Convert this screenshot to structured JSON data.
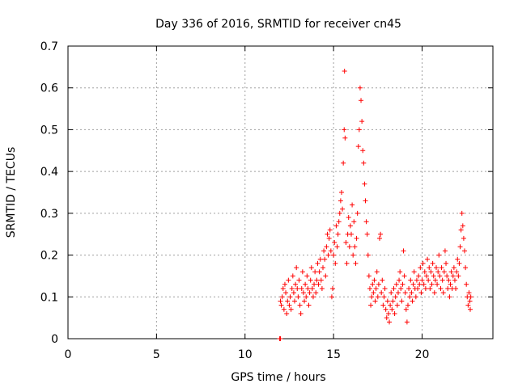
{
  "chart_data": {
    "type": "scatter",
    "title": "Day 336 of 2016, SRMTID for receiver cn45",
    "xlabel": "GPS time / hours",
    "ylabel": "SRMTID / TECUs",
    "xlim": [
      0,
      24
    ],
    "ylim": [
      0,
      0.7
    ],
    "xticks": [
      0,
      5,
      10,
      15,
      20
    ],
    "xtick_labels": [
      "0",
      "5",
      "10",
      "15",
      "20"
    ],
    "yticks": [
      0,
      0.1,
      0.2,
      0.3,
      0.4,
      0.5,
      0.6,
      0.7
    ],
    "ytick_labels": [
      "0",
      "0.1",
      "0.2",
      "0.3",
      "0.4",
      "0.5",
      "0.6",
      "0.7"
    ],
    "grid": true,
    "marker": "+",
    "color": "#ff0000",
    "series": [
      {
        "name": "SRMTID",
        "points": [
          [
            11.95,
            0.0
          ],
          [
            12.0,
            0.0
          ],
          [
            12.0,
            0.09
          ],
          [
            12.05,
            0.08
          ],
          [
            12.1,
            0.1
          ],
          [
            12.15,
            0.12
          ],
          [
            12.2,
            0.07
          ],
          [
            12.25,
            0.13
          ],
          [
            12.3,
            0.11
          ],
          [
            12.35,
            0.06
          ],
          [
            12.4,
            0.09
          ],
          [
            12.45,
            0.14
          ],
          [
            12.5,
            0.08
          ],
          [
            12.55,
            0.1
          ],
          [
            12.6,
            0.07
          ],
          [
            12.65,
            0.12
          ],
          [
            12.7,
            0.15
          ],
          [
            12.75,
            0.11
          ],
          [
            12.8,
            0.09
          ],
          [
            12.85,
            0.13
          ],
          [
            12.9,
            0.17
          ],
          [
            12.95,
            0.12
          ],
          [
            13.0,
            0.1
          ],
          [
            13.05,
            0.14
          ],
          [
            13.1,
            0.08
          ],
          [
            13.15,
            0.06
          ],
          [
            13.2,
            0.12
          ],
          [
            13.25,
            0.16
          ],
          [
            13.3,
            0.11
          ],
          [
            13.35,
            0.09
          ],
          [
            13.4,
            0.13
          ],
          [
            13.45,
            0.1
          ],
          [
            13.5,
            0.15
          ],
          [
            13.55,
            0.12
          ],
          [
            13.6,
            0.08
          ],
          [
            13.65,
            0.11
          ],
          [
            13.7,
            0.14
          ],
          [
            13.75,
            0.17
          ],
          [
            13.8,
            0.12
          ],
          [
            13.85,
            0.1
          ],
          [
            13.9,
            0.13
          ],
          [
            13.95,
            0.16
          ],
          [
            14.0,
            0.11
          ],
          [
            14.05,
            0.14
          ],
          [
            14.1,
            0.18
          ],
          [
            14.15,
            0.13
          ],
          [
            14.2,
            0.16
          ],
          [
            14.25,
            0.19
          ],
          [
            14.3,
            0.14
          ],
          [
            14.35,
            0.12
          ],
          [
            14.4,
            0.17
          ],
          [
            14.45,
            0.21
          ],
          [
            14.5,
            0.19
          ],
          [
            14.55,
            0.15
          ],
          [
            14.6,
            0.22
          ],
          [
            14.65,
            0.25
          ],
          [
            14.7,
            0.2
          ],
          [
            14.75,
            0.24
          ],
          [
            14.8,
            0.26
          ],
          [
            14.85,
            0.21
          ],
          [
            14.9,
            0.1
          ],
          [
            14.95,
            0.12
          ],
          [
            15.0,
            0.2
          ],
          [
            15.05,
            0.23
          ],
          [
            15.1,
            0.18
          ],
          [
            15.15,
            0.27
          ],
          [
            15.2,
            0.22
          ],
          [
            15.25,
            0.25
          ],
          [
            15.3,
            0.28
          ],
          [
            15.35,
            0.3
          ],
          [
            15.4,
            0.33
          ],
          [
            15.45,
            0.35
          ],
          [
            15.5,
            0.31
          ],
          [
            15.55,
            0.42
          ],
          [
            15.6,
            0.5
          ],
          [
            15.62,
            0.64
          ],
          [
            15.65,
            0.48
          ],
          [
            15.7,
            0.23
          ],
          [
            15.75,
            0.18
          ],
          [
            15.8,
            0.25
          ],
          [
            15.85,
            0.29
          ],
          [
            15.9,
            0.22
          ],
          [
            15.95,
            0.27
          ],
          [
            16.0,
            0.25
          ],
          [
            16.05,
            0.32
          ],
          [
            16.1,
            0.2
          ],
          [
            16.15,
            0.28
          ],
          [
            16.2,
            0.22
          ],
          [
            16.25,
            0.18
          ],
          [
            16.3,
            0.24
          ],
          [
            16.35,
            0.3
          ],
          [
            16.4,
            0.46
          ],
          [
            16.45,
            0.5
          ],
          [
            16.5,
            0.6
          ],
          [
            16.55,
            0.57
          ],
          [
            16.6,
            0.52
          ],
          [
            16.65,
            0.45
          ],
          [
            16.7,
            0.42
          ],
          [
            16.75,
            0.37
          ],
          [
            16.8,
            0.33
          ],
          [
            16.85,
            0.28
          ],
          [
            16.9,
            0.25
          ],
          [
            16.95,
            0.2
          ],
          [
            17.0,
            0.15
          ],
          [
            17.05,
            0.12
          ],
          [
            17.1,
            0.08
          ],
          [
            17.15,
            0.1
          ],
          [
            17.2,
            0.13
          ],
          [
            17.25,
            0.11
          ],
          [
            17.3,
            0.14
          ],
          [
            17.35,
            0.09
          ],
          [
            17.4,
            0.12
          ],
          [
            17.45,
            0.16
          ],
          [
            17.5,
            0.1
          ],
          [
            17.55,
            0.13
          ],
          [
            17.6,
            0.24
          ],
          [
            17.65,
            0.25
          ],
          [
            17.7,
            0.11
          ],
          [
            17.75,
            0.14
          ],
          [
            17.8,
            0.08
          ],
          [
            17.85,
            0.1
          ],
          [
            17.9,
            0.12
          ],
          [
            17.95,
            0.07
          ],
          [
            18.0,
            0.05
          ],
          [
            18.05,
            0.09
          ],
          [
            18.1,
            0.06
          ],
          [
            18.15,
            0.04
          ],
          [
            18.2,
            0.08
          ],
          [
            18.25,
            0.11
          ],
          [
            18.3,
            0.07
          ],
          [
            18.35,
            0.09
          ],
          [
            18.4,
            0.12
          ],
          [
            18.45,
            0.06
          ],
          [
            18.5,
            0.1
          ],
          [
            18.55,
            0.13
          ],
          [
            18.6,
            0.08
          ],
          [
            18.65,
            0.11
          ],
          [
            18.7,
            0.14
          ],
          [
            18.75,
            0.16
          ],
          [
            18.8,
            0.12
          ],
          [
            18.85,
            0.09
          ],
          [
            18.9,
            0.13
          ],
          [
            18.95,
            0.21
          ],
          [
            19.0,
            0.15
          ],
          [
            19.05,
            0.11
          ],
          [
            19.1,
            0.07
          ],
          [
            19.15,
            0.04
          ],
          [
            19.2,
            0.08
          ],
          [
            19.25,
            0.12
          ],
          [
            19.3,
            0.1
          ],
          [
            19.35,
            0.14
          ],
          [
            19.4,
            0.11
          ],
          [
            19.45,
            0.09
          ],
          [
            19.5,
            0.13
          ],
          [
            19.55,
            0.16
          ],
          [
            19.6,
            0.12
          ],
          [
            19.65,
            0.1
          ],
          [
            19.7,
            0.14
          ],
          [
            19.75,
            0.12
          ],
          [
            19.8,
            0.15
          ],
          [
            19.85,
            0.13
          ],
          [
            19.9,
            0.17
          ],
          [
            19.95,
            0.11
          ],
          [
            20.0,
            0.14
          ],
          [
            20.05,
            0.18
          ],
          [
            20.1,
            0.13
          ],
          [
            20.15,
            0.16
          ],
          [
            20.2,
            0.12
          ],
          [
            20.25,
            0.15
          ],
          [
            20.3,
            0.19
          ],
          [
            20.35,
            0.14
          ],
          [
            20.4,
            0.17
          ],
          [
            20.45,
            0.12
          ],
          [
            20.5,
            0.16
          ],
          [
            20.55,
            0.13
          ],
          [
            20.6,
            0.18
          ],
          [
            20.65,
            0.15
          ],
          [
            20.7,
            0.11
          ],
          [
            20.75,
            0.14
          ],
          [
            20.8,
            0.17
          ],
          [
            20.85,
            0.13
          ],
          [
            20.9,
            0.16
          ],
          [
            20.95,
            0.2
          ],
          [
            21.0,
            0.15
          ],
          [
            21.05,
            0.12
          ],
          [
            21.1,
            0.17
          ],
          [
            21.15,
            0.14
          ],
          [
            21.2,
            0.11
          ],
          [
            21.25,
            0.16
          ],
          [
            21.3,
            0.21
          ],
          [
            21.35,
            0.18
          ],
          [
            21.4,
            0.15
          ],
          [
            21.45,
            0.12
          ],
          [
            21.5,
            0.14
          ],
          [
            21.55,
            0.1
          ],
          [
            21.6,
            0.13
          ],
          [
            21.65,
            0.16
          ],
          [
            21.7,
            0.12
          ],
          [
            21.75,
            0.15
          ],
          [
            21.8,
            0.17
          ],
          [
            21.85,
            0.14
          ],
          [
            21.9,
            0.12
          ],
          [
            21.95,
            0.16
          ],
          [
            22.0,
            0.19
          ],
          [
            22.05,
            0.15
          ],
          [
            22.1,
            0.18
          ],
          [
            22.15,
            0.22
          ],
          [
            22.2,
            0.26
          ],
          [
            22.25,
            0.3
          ],
          [
            22.3,
            0.27
          ],
          [
            22.35,
            0.24
          ],
          [
            22.4,
            0.21
          ],
          [
            22.45,
            0.17
          ],
          [
            22.5,
            0.13
          ],
          [
            22.55,
            0.1
          ],
          [
            22.6,
            0.08
          ],
          [
            22.65,
            0.11
          ],
          [
            22.7,
            0.09
          ],
          [
            22.72,
            0.07
          ],
          [
            22.75,
            0.1
          ]
        ]
      }
    ]
  }
}
